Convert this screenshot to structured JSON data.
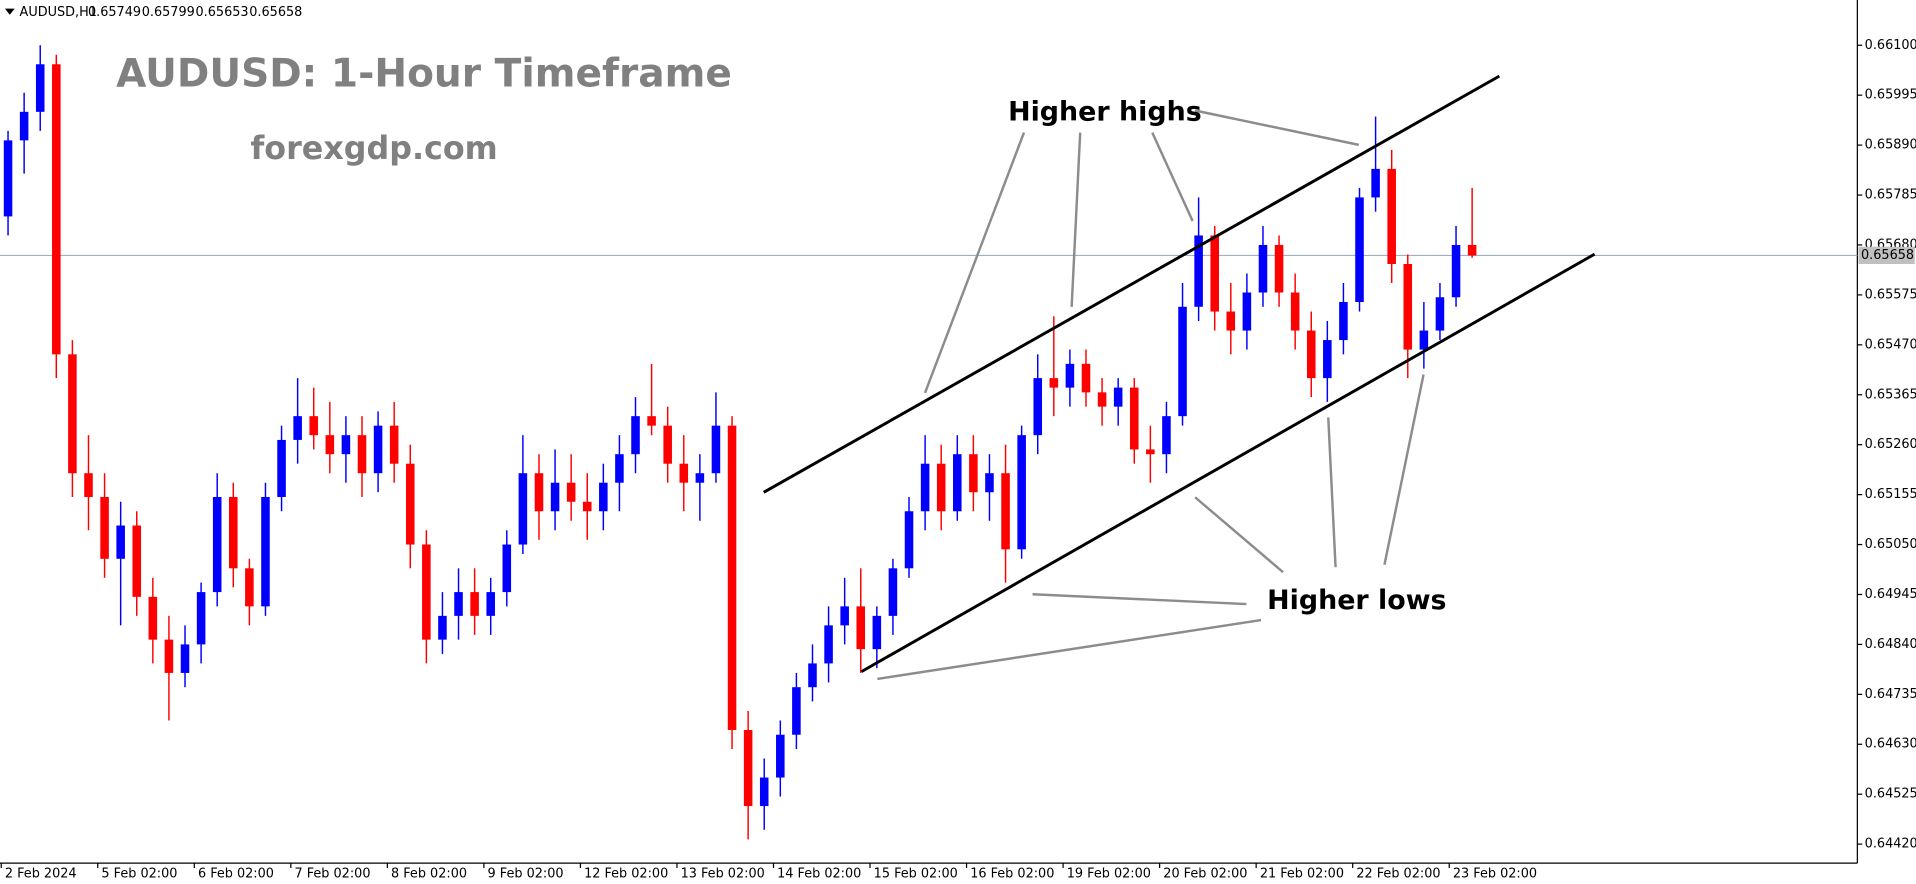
{
  "chart_data": {
    "type": "candlestick",
    "symbol": "AUDUSD,H1",
    "header_ohlc": [
      0.65749,
      0.65799,
      0.65653,
      0.65658
    ],
    "title": "AUDUSD: 1-Hour Timeframe",
    "subtitle": "forexgdp.com",
    "annotations": [
      "Higher highs",
      "Higher lows"
    ],
    "current_price": 0.65658,
    "colors": {
      "up": "#0000ff",
      "down": "#ff0000"
    },
    "ylim": [
      0.6438,
      0.6619
    ],
    "yticks": [
      {
        "value": 0.661,
        "label": "0.66100"
      },
      {
        "value": 0.65995,
        "label": "0.65995"
      },
      {
        "value": 0.6589,
        "label": "0.65890"
      },
      {
        "value": 0.65785,
        "label": "0.65785"
      },
      {
        "value": 0.6568,
        "label": "0.65680"
      },
      {
        "value": 0.65575,
        "label": "0.65575"
      },
      {
        "value": 0.6547,
        "label": "0.65470"
      },
      {
        "value": 0.65365,
        "label": "0.65365"
      },
      {
        "value": 0.6526,
        "label": "0.65260"
      },
      {
        "value": 0.65155,
        "label": "0.65155"
      },
      {
        "value": 0.6505,
        "label": "0.65050"
      },
      {
        "value": 0.64945,
        "label": "0.64945"
      },
      {
        "value": 0.6484,
        "label": "0.64840"
      },
      {
        "value": 0.64735,
        "label": "0.64735"
      },
      {
        "value": 0.6463,
        "label": "0.64630"
      },
      {
        "value": 0.64525,
        "label": "0.64525"
      },
      {
        "value": 0.6442,
        "label": "0.64420"
      }
    ],
    "days": [
      {
        "label": "2 Feb 2024",
        "candles": [
          [
            0.6574,
            0.6592,
            0.657,
            0.659
          ],
          [
            0.659,
            0.66,
            0.6583,
            0.6596
          ],
          [
            0.6596,
            0.661,
            0.6592,
            0.6606
          ],
          [
            0.6606,
            0.6608,
            0.654,
            0.6545
          ],
          [
            0.6545,
            0.6548,
            0.6515,
            0.652
          ],
          [
            0.652,
            0.6528,
            0.6508,
            0.6515
          ]
        ]
      },
      {
        "label": "5 Feb 02:00",
        "candles": [
          [
            0.6515,
            0.652,
            0.6498,
            0.6502
          ],
          [
            0.6502,
            0.6514,
            0.6488,
            0.6509
          ],
          [
            0.6509,
            0.6512,
            0.649,
            0.6494
          ],
          [
            0.6494,
            0.6498,
            0.648,
            0.6485
          ],
          [
            0.6485,
            0.649,
            0.6468,
            0.6478
          ],
          [
            0.6478,
            0.6488,
            0.6475,
            0.6484
          ]
        ]
      },
      {
        "label": "6 Feb 02:00",
        "candles": [
          [
            0.6484,
            0.6497,
            0.648,
            0.6495
          ],
          [
            0.6495,
            0.652,
            0.6492,
            0.6515
          ],
          [
            0.6515,
            0.6518,
            0.6496,
            0.65
          ],
          [
            0.65,
            0.6502,
            0.6488,
            0.6492
          ],
          [
            0.6492,
            0.6518,
            0.649,
            0.6515
          ],
          [
            0.6515,
            0.653,
            0.6512,
            0.6527
          ]
        ]
      },
      {
        "label": "7 Feb 02:00",
        "candles": [
          [
            0.6527,
            0.654,
            0.6522,
            0.6532
          ],
          [
            0.6532,
            0.6538,
            0.6525,
            0.6528
          ],
          [
            0.6528,
            0.6535,
            0.652,
            0.6524
          ],
          [
            0.6524,
            0.6532,
            0.6518,
            0.6528
          ],
          [
            0.6528,
            0.6532,
            0.6515,
            0.652
          ],
          [
            0.652,
            0.6533,
            0.6516,
            0.653
          ]
        ]
      },
      {
        "label": "8 Feb 02:00",
        "candles": [
          [
            0.653,
            0.6535,
            0.6518,
            0.6522
          ],
          [
            0.6522,
            0.6526,
            0.65,
            0.6505
          ],
          [
            0.6505,
            0.6508,
            0.648,
            0.6485
          ],
          [
            0.6485,
            0.6495,
            0.6482,
            0.649
          ],
          [
            0.649,
            0.65,
            0.6485,
            0.6495
          ],
          [
            0.6495,
            0.65,
            0.6486,
            0.649
          ]
        ]
      },
      {
        "label": "9 Feb 02:00",
        "candles": [
          [
            0.649,
            0.6498,
            0.6486,
            0.6495
          ],
          [
            0.6495,
            0.6508,
            0.6492,
            0.6505
          ],
          [
            0.6505,
            0.6528,
            0.6503,
            0.652
          ],
          [
            0.652,
            0.6524,
            0.6506,
            0.6512
          ],
          [
            0.6512,
            0.6525,
            0.6508,
            0.6518
          ],
          [
            0.6518,
            0.6524,
            0.651,
            0.6514
          ]
        ]
      },
      {
        "label": "12 Feb 02:00",
        "candles": [
          [
            0.6514,
            0.652,
            0.6506,
            0.6512
          ],
          [
            0.6512,
            0.6522,
            0.6508,
            0.6518
          ],
          [
            0.6518,
            0.6528,
            0.6512,
            0.6524
          ],
          [
            0.6524,
            0.6536,
            0.652,
            0.6532
          ],
          [
            0.6532,
            0.6543,
            0.6528,
            0.653
          ],
          [
            0.653,
            0.6534,
            0.6518,
            0.6522
          ]
        ]
      },
      {
        "label": "13 Feb 02:00",
        "candles": [
          [
            0.6522,
            0.6528,
            0.6512,
            0.6518
          ],
          [
            0.6518,
            0.6524,
            0.651,
            0.652
          ],
          [
            0.652,
            0.6537,
            0.6518,
            0.653
          ],
          [
            0.653,
            0.6532,
            0.6462,
            0.6466
          ],
          [
            0.6466,
            0.647,
            0.6443,
            0.645
          ],
          [
            0.645,
            0.646,
            0.6445,
            0.6456
          ]
        ]
      },
      {
        "label": "14 Feb 02:00",
        "candles": [
          [
            0.6456,
            0.6468,
            0.6452,
            0.6465
          ],
          [
            0.6465,
            0.6478,
            0.6462,
            0.6475
          ],
          [
            0.6475,
            0.6484,
            0.6472,
            0.648
          ],
          [
            0.648,
            0.6492,
            0.6476,
            0.6488
          ],
          [
            0.6488,
            0.6498,
            0.6484,
            0.6492
          ],
          [
            0.6492,
            0.65,
            0.6478,
            0.6483
          ]
        ]
      },
      {
        "label": "15 Feb 02:00",
        "candles": [
          [
            0.6483,
            0.6492,
            0.6479,
            0.649
          ],
          [
            0.649,
            0.6502,
            0.6486,
            0.65
          ],
          [
            0.65,
            0.6515,
            0.6498,
            0.6512
          ],
          [
            0.6512,
            0.6528,
            0.6508,
            0.6522
          ],
          [
            0.6522,
            0.6526,
            0.6508,
            0.6512
          ],
          [
            0.6512,
            0.6528,
            0.651,
            0.6524
          ]
        ]
      },
      {
        "label": "16 Feb 02:00",
        "candles": [
          [
            0.6524,
            0.6528,
            0.6512,
            0.6516
          ],
          [
            0.6516,
            0.6524,
            0.651,
            0.652
          ],
          [
            0.652,
            0.6526,
            0.6497,
            0.6504
          ],
          [
            0.6504,
            0.653,
            0.6502,
            0.6528
          ],
          [
            0.6528,
            0.6545,
            0.6524,
            0.654
          ],
          [
            0.654,
            0.6553,
            0.6532,
            0.6538
          ]
        ]
      },
      {
        "label": "19 Feb 02:00",
        "candles": [
          [
            0.6538,
            0.6546,
            0.6534,
            0.6543
          ],
          [
            0.6543,
            0.6546,
            0.6534,
            0.6537
          ],
          [
            0.6537,
            0.654,
            0.653,
            0.6534
          ],
          [
            0.6534,
            0.654,
            0.653,
            0.6538
          ],
          [
            0.6538,
            0.654,
            0.6522,
            0.6525
          ],
          [
            0.6525,
            0.653,
            0.6518,
            0.6524
          ]
        ]
      },
      {
        "label": "20 Feb 02:00",
        "candles": [
          [
            0.6524,
            0.6535,
            0.652,
            0.6532
          ],
          [
            0.6532,
            0.656,
            0.653,
            0.6555
          ],
          [
            0.6555,
            0.6578,
            0.6552,
            0.657
          ],
          [
            0.657,
            0.6572,
            0.655,
            0.6554
          ],
          [
            0.6554,
            0.656,
            0.6545,
            0.655
          ],
          [
            0.655,
            0.6562,
            0.6546,
            0.6558
          ]
        ]
      },
      {
        "label": "21 Feb 02:00",
        "candles": [
          [
            0.6558,
            0.6572,
            0.6555,
            0.6568
          ],
          [
            0.6568,
            0.657,
            0.6555,
            0.6558
          ],
          [
            0.6558,
            0.6562,
            0.6546,
            0.655
          ],
          [
            0.655,
            0.6554,
            0.6536,
            0.654
          ],
          [
            0.654,
            0.6552,
            0.6535,
            0.6548
          ],
          [
            0.6548,
            0.656,
            0.6545,
            0.6556
          ]
        ]
      },
      {
        "label": "22 Feb 02:00",
        "candles": [
          [
            0.6556,
            0.658,
            0.6554,
            0.6578
          ],
          [
            0.6578,
            0.6595,
            0.6575,
            0.6584
          ],
          [
            0.6584,
            0.6588,
            0.656,
            0.6564
          ],
          [
            0.6564,
            0.6566,
            0.654,
            0.6546
          ],
          [
            0.6546,
            0.6556,
            0.6542,
            0.655
          ],
          [
            0.655,
            0.656,
            0.6548,
            0.6557
          ]
        ]
      },
      {
        "label": "23 Feb 02:00",
        "candles": [
          [
            0.6557,
            0.6572,
            0.6555,
            0.6568
          ],
          [
            0.6568,
            0.658,
            0.65653,
            0.65658
          ]
        ]
      }
    ]
  }
}
